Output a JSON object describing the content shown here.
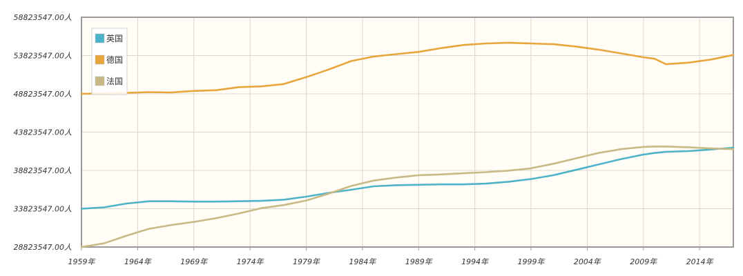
{
  "chart_data": {
    "type": "line",
    "title": "",
    "xlabel": "",
    "ylabel": "",
    "grid": true,
    "legend_position": "top-left",
    "xlim": [
      1959,
      2017
    ],
    "ylim": [
      28823547,
      58823547
    ],
    "y_ticks": [
      28823547,
      33823547,
      38823547,
      43823547,
      48823547,
      53823547,
      58823547
    ],
    "y_tick_labels": [
      "28823547.00人",
      "33823547.00人",
      "38823547.00人",
      "43823547.00人",
      "48823547.00人",
      "53823547.00人",
      "58823547.00人"
    ],
    "x_ticks": [
      1959,
      1964,
      1969,
      1974,
      1979,
      1984,
      1989,
      1994,
      1999,
      2004,
      2009,
      2014
    ],
    "x_tick_labels": [
      "1959年",
      "1964年",
      "1969年",
      "1974年",
      "1979年",
      "1984年",
      "1989年",
      "1994年",
      "1999年",
      "2004年",
      "2009年",
      "2014年"
    ],
    "x": [
      1959,
      1961,
      1963,
      1965,
      1967,
      1969,
      1971,
      1973,
      1975,
      1977,
      1979,
      1981,
      1983,
      1985,
      1987,
      1989,
      1991,
      1993,
      1995,
      1997,
      1999,
      2001,
      2003,
      2005,
      2007,
      2009,
      2010,
      2011,
      2012,
      2013,
      2015,
      2017
    ],
    "series": [
      {
        "name": "英国",
        "color": "#4eb3c8",
        "values": [
          33823547,
          34000000,
          34500000,
          34800000,
          34800000,
          34750000,
          34750000,
          34800000,
          34850000,
          35000000,
          35400000,
          35900000,
          36300000,
          36750000,
          36900000,
          36950000,
          37000000,
          37000000,
          37100000,
          37350000,
          37700000,
          38200000,
          38900000,
          39600000,
          40300000,
          40900000,
          41100000,
          41250000,
          41300000,
          41350000,
          41550000,
          41800000
        ]
      },
      {
        "name": "德国",
        "color": "#e8a53c",
        "values": [
          48823547,
          48900000,
          48950000,
          49050000,
          49000000,
          49200000,
          49300000,
          49700000,
          49800000,
          50100000,
          51000000,
          52000000,
          53100000,
          53700000,
          54000000,
          54300000,
          54800000,
          55200000,
          55400000,
          55500000,
          55400000,
          55300000,
          55000000,
          54600000,
          54100000,
          53600000,
          53400000,
          52700000,
          52800000,
          52900000,
          53300000,
          53900000
        ]
      },
      {
        "name": "法国",
        "color": "#c8b985",
        "values": [
          28823547,
          29300000,
          30300000,
          31200000,
          31700000,
          32100000,
          32600000,
          33200000,
          33900000,
          34300000,
          34900000,
          35800000,
          36800000,
          37500000,
          37900000,
          38200000,
          38300000,
          38450000,
          38600000,
          38800000,
          39100000,
          39700000,
          40400000,
          41100000,
          41600000,
          41900000,
          41950000,
          41950000,
          41900000,
          41850000,
          41700000,
          41600000
        ]
      }
    ]
  }
}
